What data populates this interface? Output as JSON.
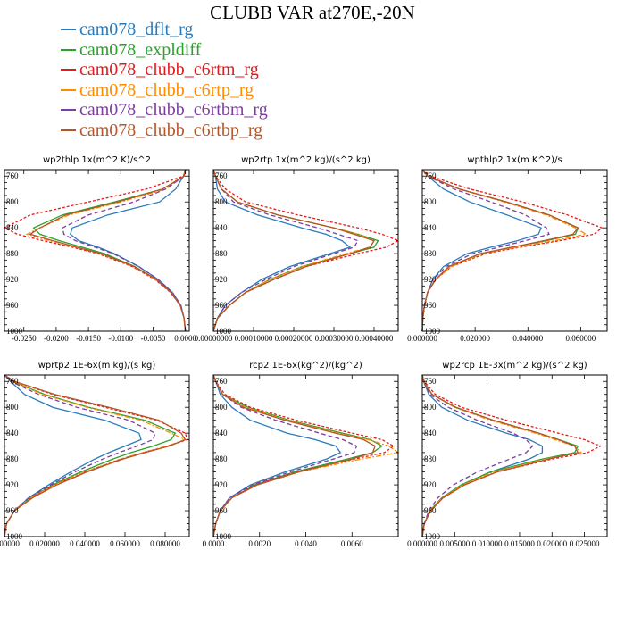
{
  "title": "CLUBB VAR at270E,-20N",
  "legend": [
    {
      "label": "cam078_dflt_rg",
      "color": "#2b7bba"
    },
    {
      "label": "cam078_expldiff",
      "color": "#2ca02c"
    },
    {
      "label": "cam078_clubb_c6rtm_rg",
      "color": "#e31a1c"
    },
    {
      "label": "cam078_clubb_c6rtp_rg",
      "color": "#ff8c00"
    },
    {
      "label": "cam078_clubb_c6rtbm_rg",
      "color": "#7b3fa0"
    },
    {
      "label": "cam078_clubb_c6rtbp_rg",
      "color": "#b5562a"
    }
  ],
  "chart_data": [
    {
      "type": "line",
      "title": "wp2thlp   1x(m^2 K)/s^2",
      "xlim": [
        -0.028,
        0.0006
      ],
      "ylim": [
        1000,
        750
      ],
      "xticks": [
        -0.025,
        -0.02,
        -0.015,
        -0.01,
        -0.005,
        0.0
      ],
      "xtick_labels": [
        "-0.0250",
        "-0.0200",
        "-0.0150",
        "-0.0100",
        "-0.0050",
        "0.0000"
      ],
      "yticks": [
        760,
        800,
        840,
        880,
        920,
        960,
        1000
      ],
      "y": [
        750,
        760,
        780,
        800,
        820,
        840,
        850,
        860,
        870,
        880,
        900,
        920,
        940,
        960,
        980,
        1000
      ],
      "series": [
        {
          "name": "cam078_dflt_rg",
          "values": [
            0.0,
            -0.0003,
            -0.0015,
            -0.004,
            -0.012,
            -0.0175,
            -0.0178,
            -0.0165,
            -0.0135,
            -0.011,
            -0.0072,
            -0.0042,
            -0.002,
            -0.0007,
            -0.0002,
            0.0
          ]
        },
        {
          "name": "cam078_expldiff",
          "values": [
            0.0,
            -0.0002,
            -0.0035,
            -0.011,
            -0.019,
            -0.0235,
            -0.0225,
            -0.0195,
            -0.016,
            -0.0125,
            -0.0078,
            -0.0045,
            -0.0022,
            -0.0008,
            -0.0002,
            0.0
          ]
        },
        {
          "name": "cam078_clubb_c6rtm_rg",
          "values": [
            0.0,
            -0.0003,
            -0.006,
            -0.015,
            -0.024,
            -0.028,
            -0.026,
            -0.022,
            -0.0175,
            -0.0135,
            -0.0082,
            -0.0047,
            -0.0023,
            -0.0008,
            -0.0002,
            0.0
          ]
        },
        {
          "name": "cam078_clubb_c6rtp_rg",
          "values": [
            0.0,
            -0.0002,
            -0.003,
            -0.01,
            -0.018,
            -0.0225,
            -0.0245,
            -0.021,
            -0.017,
            -0.0132,
            -0.008,
            -0.0046,
            -0.0022,
            -0.0008,
            -0.0002,
            0.0
          ]
        },
        {
          "name": "cam078_clubb_c6rtbm_rg",
          "values": [
            0.0,
            -0.0002,
            -0.003,
            -0.008,
            -0.015,
            -0.019,
            -0.0188,
            -0.017,
            -0.014,
            -0.0112,
            -0.0072,
            -0.0042,
            -0.002,
            -0.0007,
            -0.0002,
            0.0
          ]
        },
        {
          "name": "cam078_clubb_c6rtbp_rg",
          "values": [
            0.0,
            -0.0002,
            -0.0035,
            -0.0105,
            -0.0185,
            -0.0225,
            -0.024,
            -0.0205,
            -0.0168,
            -0.013,
            -0.0079,
            -0.0045,
            -0.0022,
            -0.0008,
            -0.0002,
            0.0
          ]
        }
      ]
    },
    {
      "type": "line",
      "title": "wp2rtp   1x(m^2 kg)/(s^2 kg)",
      "xlim": [
        0,
        0.00046
      ],
      "ylim": [
        1000,
        750
      ],
      "xticks": [
        0,
        0.0001,
        0.0002,
        0.0003,
        0.0004
      ],
      "xtick_labels": [
        "0.00000000",
        "0.00010000",
        "0.00020000",
        "0.00030000",
        "0.00040000"
      ],
      "yticks": [
        760,
        800,
        840,
        880,
        920,
        960,
        1000
      ],
      "y": [
        750,
        760,
        780,
        800,
        820,
        840,
        850,
        860,
        870,
        880,
        900,
        920,
        940,
        960,
        980,
        1000
      ],
      "series": [
        {
          "name": "cam078_dflt_rg",
          "values": [
            0.0,
            5e-06,
            1e-05,
            3e-05,
            0.00011,
            0.00022,
            0.00028,
            0.00032,
            0.00034,
            0.00029,
            0.00019,
            0.00012,
            7e-05,
            3e-05,
            1e-05,
            0.0
          ]
        },
        {
          "name": "cam078_expldiff",
          "values": [
            0.0,
            5e-06,
            2e-05,
            6e-05,
            0.00016,
            0.0003,
            0.00036,
            0.00041,
            0.0004,
            0.00034,
            0.00022,
            0.00014,
            8e-05,
            4e-05,
            1e-05,
            0.0
          ]
        },
        {
          "name": "cam078_clubb_c6rtm_rg",
          "values": [
            0.0,
            5e-06,
            3e-05,
            8e-05,
            0.00021,
            0.00036,
            0.00042,
            0.00046,
            0.00043,
            0.00036,
            0.00023,
            0.00015,
            8e-05,
            4e-05,
            1e-05,
            0.0
          ]
        },
        {
          "name": "cam078_clubb_c6rtp_rg",
          "values": [
            0.0,
            5e-06,
            2e-05,
            6e-05,
            0.00016,
            0.0003,
            0.00036,
            0.0004,
            0.00039,
            0.00033,
            0.00022,
            0.00014,
            8e-05,
            4e-05,
            1e-05,
            0.0
          ]
        },
        {
          "name": "cam078_clubb_c6rtbm_rg",
          "values": [
            0.0,
            5e-06,
            2e-05,
            5e-05,
            0.00014,
            0.00026,
            0.00031,
            0.00036,
            0.00035,
            0.0003,
            0.0002,
            0.00013,
            7e-05,
            3e-05,
            1e-05,
            0.0
          ]
        },
        {
          "name": "cam078_clubb_c6rtbp_rg",
          "values": [
            0.0,
            5e-06,
            2e-05,
            6e-05,
            0.00016,
            0.0003,
            0.00035,
            0.0004,
            0.00039,
            0.00034,
            0.00023,
            0.00015,
            8e-05,
            4e-05,
            1e-05,
            0.0
          ]
        }
      ]
    },
    {
      "type": "line",
      "title": "wpthlp2   1x(m K^2)/s",
      "xlim": [
        0,
        0.07
      ],
      "ylim": [
        1000,
        750
      ],
      "xticks": [
        0,
        0.02,
        0.04,
        0.06
      ],
      "xtick_labels": [
        "0.000000",
        "0.020000",
        "0.040000",
        "0.060000"
      ],
      "yticks": [
        760,
        800,
        840,
        880,
        920,
        960,
        1000
      ],
      "y": [
        750,
        760,
        780,
        800,
        820,
        840,
        850,
        860,
        870,
        880,
        900,
        920,
        940,
        960,
        980,
        1000
      ],
      "series": [
        {
          "name": "cam078_dflt_rg",
          "values": [
            0.0,
            0.002,
            0.008,
            0.018,
            0.032,
            0.045,
            0.044,
            0.036,
            0.026,
            0.017,
            0.008,
            0.004,
            0.002,
            0.0008,
            0.0002,
            0.0
          ]
        },
        {
          "name": "cam078_expldiff",
          "values": [
            0.0,
            0.002,
            0.014,
            0.032,
            0.048,
            0.059,
            0.058,
            0.047,
            0.034,
            0.022,
            0.01,
            0.005,
            0.002,
            0.0008,
            0.0002,
            0.0
          ]
        },
        {
          "name": "cam078_clubb_c6rtm_rg",
          "values": [
            0.0,
            0.003,
            0.018,
            0.038,
            0.055,
            0.068,
            0.065,
            0.052,
            0.037,
            0.024,
            0.011,
            0.005,
            0.002,
            0.0008,
            0.0002,
            0.0
          ]
        },
        {
          "name": "cam078_clubb_c6rtp_rg",
          "values": [
            0.0,
            0.002,
            0.014,
            0.031,
            0.047,
            0.058,
            0.062,
            0.05,
            0.036,
            0.023,
            0.011,
            0.005,
            0.002,
            0.0008,
            0.0002,
            0.0
          ]
        },
        {
          "name": "cam078_clubb_c6rtbm_rg",
          "values": [
            0.0,
            0.002,
            0.012,
            0.026,
            0.039,
            0.047,
            0.048,
            0.039,
            0.029,
            0.019,
            0.009,
            0.004,
            0.002,
            0.0008,
            0.0002,
            0.0
          ]
        },
        {
          "name": "cam078_clubb_c6rtbp_rg",
          "values": [
            0.0,
            0.002,
            0.014,
            0.032,
            0.048,
            0.059,
            0.057,
            0.046,
            0.034,
            0.022,
            0.01,
            0.005,
            0.002,
            0.0008,
            0.0002,
            0.0
          ]
        }
      ]
    },
    {
      "type": "line",
      "title": "wprtp2   1E-6x(m kg)/(s kg)",
      "xlim": [
        0,
        0.092
      ],
      "ylim": [
        1000,
        750
      ],
      "xticks": [
        0,
        0.02,
        0.04,
        0.06,
        0.08
      ],
      "xtick_labels": [
        "0.000000",
        "0.020000",
        "0.040000",
        "0.060000",
        "0.080000"
      ],
      "yticks": [
        760,
        800,
        840,
        880,
        920,
        960,
        1000
      ],
      "y": [
        750,
        760,
        780,
        800,
        820,
        840,
        850,
        860,
        870,
        880,
        900,
        920,
        940,
        960,
        980,
        1000
      ],
      "series": [
        {
          "name": "cam078_dflt_rg",
          "values": [
            0.0,
            0.003,
            0.01,
            0.024,
            0.05,
            0.067,
            0.068,
            0.06,
            0.052,
            0.045,
            0.033,
            0.022,
            0.012,
            0.005,
            0.001,
            0.0
          ]
        },
        {
          "name": "cam078_expldiff",
          "values": [
            0.0,
            0.004,
            0.02,
            0.042,
            0.07,
            0.085,
            0.083,
            0.074,
            0.063,
            0.054,
            0.038,
            0.024,
            0.013,
            0.005,
            0.001,
            0.0
          ]
        },
        {
          "name": "cam078_clubb_c6rtm_rg",
          "values": [
            0.0,
            0.005,
            0.024,
            0.05,
            0.076,
            0.09,
            0.091,
            0.081,
            0.069,
            0.058,
            0.04,
            0.025,
            0.013,
            0.005,
            0.001,
            0.0
          ]
        },
        {
          "name": "cam078_clubb_c6rtp_rg",
          "values": [
            0.0,
            0.004,
            0.019,
            0.041,
            0.068,
            0.083,
            0.09,
            0.081,
            0.069,
            0.058,
            0.04,
            0.025,
            0.013,
            0.005,
            0.001,
            0.0
          ]
        },
        {
          "name": "cam078_clubb_c6rtbm_rg",
          "values": [
            0.0,
            0.003,
            0.017,
            0.036,
            0.062,
            0.075,
            0.074,
            0.066,
            0.057,
            0.049,
            0.035,
            0.023,
            0.012,
            0.005,
            0.001,
            0.0
          ]
        },
        {
          "name": "cam078_clubb_c6rtbp_rg",
          "values": [
            0.0,
            0.005,
            0.025,
            0.052,
            0.077,
            0.088,
            0.09,
            0.082,
            0.07,
            0.059,
            0.041,
            0.026,
            0.014,
            0.005,
            0.001,
            0.0
          ]
        }
      ]
    },
    {
      "type": "line",
      "title": "rcp2   1E-6x(kg^2)/(kg^2)",
      "xlim": [
        0,
        0.008
      ],
      "ylim": [
        1000,
        750
      ],
      "xticks": [
        0,
        0.002,
        0.004,
        0.006
      ],
      "xtick_labels": [
        "0.0000",
        "0.0020",
        "0.0040",
        "0.0060"
      ],
      "yticks": [
        760,
        800,
        840,
        880,
        920,
        960,
        1000
      ],
      "y": [
        750,
        760,
        780,
        800,
        820,
        840,
        850,
        860,
        870,
        880,
        900,
        920,
        940,
        960,
        980,
        1000
      ],
      "series": [
        {
          "name": "cam078_dflt_rg",
          "values": [
            0.0,
            0.0001,
            0.0003,
            0.0008,
            0.0016,
            0.0032,
            0.0044,
            0.0053,
            0.0055,
            0.0049,
            0.0031,
            0.0016,
            0.0007,
            0.0003,
            0.0001,
            0.0
          ]
        },
        {
          "name": "cam078_expldiff",
          "values": [
            0.0,
            0.0001,
            0.0004,
            0.0015,
            0.0033,
            0.0056,
            0.0068,
            0.0073,
            0.0069,
            0.0058,
            0.0035,
            0.0018,
            0.0008,
            0.0003,
            0.0001,
            0.0
          ]
        },
        {
          "name": "cam078_clubb_c6rtm_rg",
          "values": [
            0.0,
            0.0001,
            0.0005,
            0.0016,
            0.0036,
            0.006,
            0.0073,
            0.0078,
            0.0074,
            0.0061,
            0.0036,
            0.0018,
            0.0008,
            0.0003,
            0.0001,
            0.0
          ]
        },
        {
          "name": "cam078_clubb_c6rtp_rg",
          "values": [
            0.0,
            0.0001,
            0.0004,
            0.0014,
            0.0032,
            0.0054,
            0.0067,
            0.0076,
            0.008,
            0.0064,
            0.0037,
            0.0019,
            0.0008,
            0.0003,
            0.0001,
            0.0
          ]
        },
        {
          "name": "cam078_clubb_c6rtbm_rg",
          "values": [
            0.0,
            0.0001,
            0.0004,
            0.0012,
            0.0027,
            0.0046,
            0.0056,
            0.0062,
            0.0061,
            0.0052,
            0.0033,
            0.0017,
            0.0007,
            0.0003,
            0.0001,
            0.0
          ]
        },
        {
          "name": "cam078_clubb_c6rtbp_rg",
          "values": [
            0.0,
            0.0001,
            0.0004,
            0.0013,
            0.0031,
            0.0053,
            0.0065,
            0.007,
            0.0069,
            0.006,
            0.0037,
            0.0019,
            0.0008,
            0.0003,
            0.0001,
            0.0
          ]
        }
      ]
    },
    {
      "type": "line",
      "title": "wp2rcp   1E-3x(m^2 kg)/(s^2 kg)",
      "xlim": [
        0,
        0.0285
      ],
      "ylim": [
        1000,
        750
      ],
      "xticks": [
        0,
        0.005,
        0.01,
        0.015,
        0.02,
        0.025
      ],
      "xtick_labels": [
        "0.000000",
        "0.005000",
        "0.010000",
        "0.015000",
        "0.020000",
        "0.025000"
      ],
      "yticks": [
        760,
        800,
        840,
        880,
        920,
        960,
        1000
      ],
      "y": [
        750,
        760,
        780,
        800,
        820,
        840,
        850,
        860,
        870,
        880,
        900,
        920,
        940,
        960,
        980,
        1000
      ],
      "series": [
        {
          "name": "cam078_dflt_rg",
          "values": [
            0.0,
            0.0002,
            0.001,
            0.003,
            0.007,
            0.013,
            0.0165,
            0.0185,
            0.0185,
            0.0165,
            0.0105,
            0.006,
            0.003,
            0.0012,
            0.0003,
            0.0
          ]
        },
        {
          "name": "cam078_expldiff",
          "values": [
            0.0,
            0.0002,
            0.0015,
            0.005,
            0.011,
            0.018,
            0.021,
            0.024,
            0.0235,
            0.0185,
            0.0105,
            0.006,
            0.003,
            0.0012,
            0.0003,
            0.0
          ]
        },
        {
          "name": "cam078_clubb_c6rtm_rg",
          "values": [
            0.0,
            0.0003,
            0.002,
            0.006,
            0.013,
            0.021,
            0.025,
            0.0275,
            0.0255,
            0.02,
            0.0115,
            0.0065,
            0.0032,
            0.0013,
            0.0003,
            0.0
          ]
        },
        {
          "name": "cam078_clubb_c6rtp_rg",
          "values": [
            0.0,
            0.0002,
            0.0015,
            0.005,
            0.0105,
            0.0175,
            0.0205,
            0.0235,
            0.0245,
            0.019,
            0.011,
            0.0062,
            0.0031,
            0.0012,
            0.0003,
            0.0
          ]
        },
        {
          "name": "cam078_clubb_c6rtbm_rg",
          "values": [
            0.0,
            0.0002,
            0.0012,
            0.004,
            0.0085,
            0.014,
            0.016,
            0.017,
            0.016,
            0.0135,
            0.0085,
            0.0048,
            0.0024,
            0.001,
            0.0003,
            0.0
          ]
        },
        {
          "name": "cam078_clubb_c6rtbp_rg",
          "values": [
            0.0,
            0.0002,
            0.0015,
            0.0052,
            0.011,
            0.018,
            0.021,
            0.0235,
            0.024,
            0.0195,
            0.0115,
            0.0065,
            0.0032,
            0.0013,
            0.0003,
            0.0
          ]
        }
      ]
    }
  ]
}
